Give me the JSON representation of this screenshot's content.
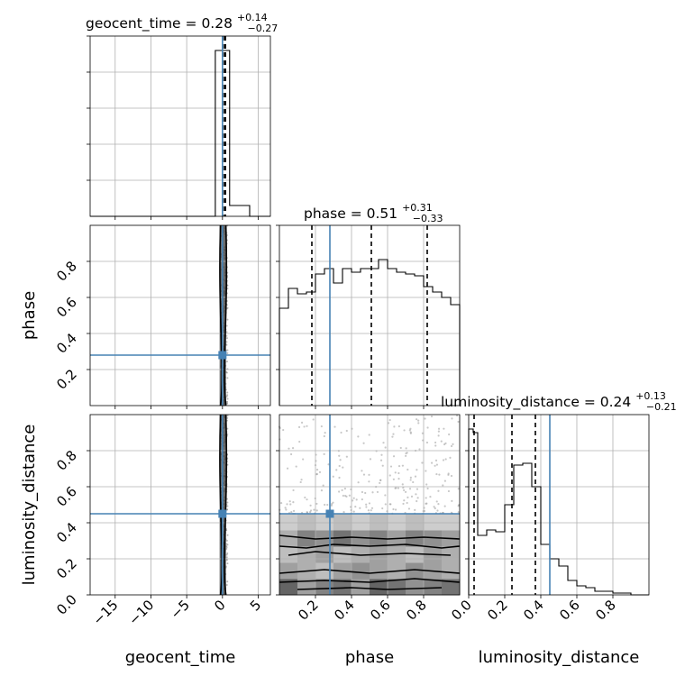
{
  "colors": {
    "truth": "#4682b4",
    "ink": "#000000",
    "grid": "#b0b0b0",
    "density_light": "#e6e6e6",
    "density_mid": "#bdbdbd",
    "density_dark": "#7a7a7a"
  },
  "chart_data": {
    "type": "corner",
    "grid": true,
    "parameters": [
      "geocent_time",
      "phase",
      "luminosity_distance"
    ],
    "truths": {
      "geocent_time": 0.0,
      "phase": 0.28,
      "luminosity_distance": 0.45
    },
    "ranges": {
      "geocent_time": [
        -18.5,
        6.7
      ],
      "phase": [
        0.0,
        1.0
      ],
      "luminosity_distance": [
        0.0,
        1.0
      ]
    },
    "titles": [
      {
        "param": "geocent_time",
        "label": "geocent_time",
        "median": "0.28",
        "plus": "+0.14",
        "minus": "−0.27"
      },
      {
        "param": "phase",
        "label": "phase",
        "median": "0.51",
        "plus": "+0.31",
        "minus": "−0.33"
      },
      {
        "param": "luminosity_distance",
        "label": "luminosity_distance",
        "median": "0.24",
        "plus": "+0.13",
        "minus": "−0.21"
      }
    ],
    "axis_labels": {
      "x": [
        "geocent_time",
        "phase",
        "luminosity_distance"
      ],
      "y": [
        "phase",
        "luminosity_distance"
      ]
    },
    "ticks": {
      "geocent_time": [
        "−15",
        "−10",
        "−5",
        "0",
        "5"
      ],
      "phase": [
        "0.2",
        "0.4",
        "0.6",
        "0.8"
      ],
      "luminosity_distance": [
        "0.0",
        "0.2",
        "0.4",
        "0.6",
        "0.8"
      ]
    },
    "quantiles": {
      "geocent_time": [
        0.01,
        0.28,
        0.42
      ],
      "phase": [
        0.18,
        0.51,
        0.82
      ],
      "luminosity_distance": [
        0.03,
        0.24,
        0.37
      ]
    },
    "histograms": {
      "geocent_time": {
        "edges": [
          -18.5,
          -1.0,
          -0.5,
          0.0,
          0.5,
          1.0,
          2.0,
          3.8,
          6.7
        ],
        "counts": [
          0,
          0.92,
          0.92,
          0.92,
          0.92,
          0.06,
          0.06,
          0.0
        ]
      },
      "phase": {
        "edges": [
          0.0,
          0.05,
          0.1,
          0.15,
          0.2,
          0.25,
          0.3,
          0.35,
          0.4,
          0.45,
          0.5,
          0.55,
          0.6,
          0.65,
          0.7,
          0.75,
          0.8,
          0.85,
          0.9,
          0.95,
          1.0
        ],
        "counts": [
          0.54,
          0.65,
          0.62,
          0.63,
          0.73,
          0.76,
          0.68,
          0.76,
          0.74,
          0.76,
          0.76,
          0.81,
          0.76,
          0.74,
          0.73,
          0.72,
          0.66,
          0.63,
          0.6,
          0.56
        ]
      },
      "luminosity_distance": {
        "edges": [
          0.0,
          0.025,
          0.05,
          0.1,
          0.15,
          0.2,
          0.25,
          0.3,
          0.35,
          0.4,
          0.45,
          0.5,
          0.55,
          0.6,
          0.65,
          0.7,
          0.8,
          0.9,
          1.0
        ],
        "counts": [
          0.92,
          0.9,
          0.33,
          0.36,
          0.35,
          0.5,
          0.72,
          0.73,
          0.6,
          0.28,
          0.2,
          0.16,
          0.08,
          0.05,
          0.04,
          0.02,
          0.01,
          0.0
        ]
      }
    },
    "pair_density": {
      "phase_vs_luminosity_distance": {
        "x_bins": 10,
        "y_bins": 5,
        "y_range": [
          0.0,
          0.45
        ],
        "cells": [
          [
            0.9,
            0.5,
            0.7,
            0.8,
            0.5,
            0.9,
            0.8,
            0.6,
            0.7,
            0.8
          ],
          [
            0.5,
            0.4,
            0.3,
            0.5,
            0.6,
            0.5,
            0.4,
            0.6,
            0.5,
            0.4
          ],
          [
            0.3,
            0.4,
            0.5,
            0.3,
            0.4,
            0.5,
            0.4,
            0.3,
            0.5,
            0.4
          ],
          [
            0.4,
            0.7,
            0.6,
            0.8,
            0.6,
            0.7,
            0.5,
            0.7,
            0.6,
            0.5
          ],
          [
            0.2,
            0.3,
            0.2,
            0.3,
            0.2,
            0.3,
            0.2,
            0.3,
            0.2,
            0.2
          ]
        ],
        "contours": [
          [
            [
              0.0,
              0.33
            ],
            [
              0.2,
              0.31
            ],
            [
              0.4,
              0.32
            ],
            [
              0.6,
              0.31
            ],
            [
              0.8,
              0.32
            ],
            [
              1.0,
              0.31
            ]
          ],
          [
            [
              0.0,
              0.27
            ],
            [
              0.15,
              0.26
            ],
            [
              0.3,
              0.28
            ],
            [
              0.5,
              0.27
            ],
            [
              0.7,
              0.28
            ],
            [
              0.9,
              0.26
            ],
            [
              1.0,
              0.27
            ]
          ],
          [
            [
              0.05,
              0.22
            ],
            [
              0.2,
              0.24
            ],
            [
              0.45,
              0.22
            ],
            [
              0.7,
              0.23
            ],
            [
              0.95,
              0.22
            ]
          ],
          [
            [
              0.0,
              0.12
            ],
            [
              0.25,
              0.14
            ],
            [
              0.5,
              0.12
            ],
            [
              0.75,
              0.14
            ],
            [
              1.0,
              0.12
            ]
          ],
          [
            [
              0.0,
              0.07
            ],
            [
              0.25,
              0.08
            ],
            [
              0.5,
              0.07
            ],
            [
              0.75,
              0.09
            ],
            [
              1.0,
              0.07
            ]
          ],
          [
            [
              0.1,
              0.03
            ],
            [
              0.4,
              0.04
            ],
            [
              0.6,
              0.03
            ],
            [
              0.9,
              0.04
            ]
          ]
        ]
      }
    }
  }
}
